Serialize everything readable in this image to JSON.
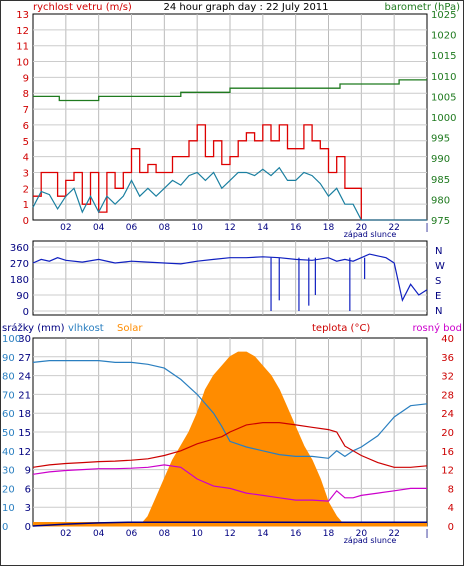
{
  "chart_data": [
    {
      "type": "line",
      "title": "24 hour graph day : 22 July 2011",
      "left_axis_label": "rychlost vetru (m/s)",
      "right_axis_label": "barometr (hPa)",
      "left_ticks": [
        "0",
        "1",
        "2",
        "3",
        "4",
        "5",
        "6",
        "7",
        "8",
        "9",
        "10",
        "11",
        "12",
        "13"
      ],
      "right_ticks": [
        "975",
        "980",
        "985",
        "990",
        "995",
        "1000",
        "1005",
        "1010",
        "1015",
        "1020",
        "1025"
      ],
      "x_ticks": [
        "02",
        "04",
        "06",
        "08",
        "10",
        "12",
        "14",
        "16",
        "18",
        "20",
        "22"
      ],
      "sunset_label": "západ slunce",
      "ylim_left": [
        0,
        13
      ],
      "ylim_right": [
        975,
        1025
      ],
      "xlim": [
        0,
        24
      ],
      "colors": {
        "gust": "#dd0000",
        "avg": "#1a7fa0",
        "pressure": "#1f7a1f"
      },
      "series": [
        {
          "key": "pressure",
          "x": [
            0,
            1.5,
            1.6,
            4,
            6,
            9,
            12,
            15,
            18,
            18.7,
            21,
            22,
            22.3,
            24
          ],
          "y": [
            1005,
            1005,
            1004,
            1005,
            1005,
            1006,
            1007,
            1007,
            1007,
            1008,
            1008,
            1008,
            1009,
            1009
          ]
        },
        {
          "key": "gust",
          "x": [
            0,
            0.5,
            1,
            1.5,
            2,
            2.5,
            3,
            3.5,
            4,
            4.5,
            5,
            5.5,
            6,
            6.5,
            7,
            7.5,
            8,
            8.5,
            9,
            9.5,
            10,
            10.5,
            11,
            11.5,
            12,
            12.5,
            13,
            13.5,
            14,
            14.5,
            15,
            15.5,
            16,
            16.5,
            17,
            17.5,
            18,
            18.5,
            19,
            19.5,
            20,
            20.5,
            21,
            22,
            23,
            24
          ],
          "y": [
            1.5,
            3,
            3,
            1.5,
            2.5,
            3,
            1,
            3,
            0.5,
            3,
            2,
            3,
            4.5,
            3,
            3.5,
            3,
            3,
            4,
            4,
            5,
            6,
            4,
            5,
            3.5,
            4,
            5,
            5.5,
            5,
            6,
            5,
            6,
            4.5,
            4.5,
            6,
            5,
            4.5,
            3,
            4,
            2,
            2,
            0,
            0,
            0,
            0,
            0,
            0
          ]
        },
        {
          "key": "avg",
          "x": [
            0,
            0.5,
            1,
            1.5,
            2,
            2.5,
            3,
            3.5,
            4,
            4.5,
            5,
            5.5,
            6,
            6.5,
            7,
            7.5,
            8,
            8.5,
            9,
            9.5,
            10,
            10.5,
            11,
            11.5,
            12,
            12.5,
            13,
            13.5,
            14,
            14.5,
            15,
            15.5,
            16,
            16.5,
            17,
            17.5,
            18,
            18.5,
            19,
            19.5,
            20,
            20.5,
            21,
            22,
            23,
            24
          ],
          "y": [
            0.8,
            1.8,
            1.6,
            0.7,
            1.5,
            2,
            0.5,
            1.5,
            0.5,
            1.5,
            1,
            1.5,
            2.5,
            1.5,
            2,
            1.5,
            2,
            2.5,
            2.2,
            2.8,
            3,
            2.5,
            3,
            2,
            2.5,
            3,
            3,
            2.8,
            3.2,
            2.8,
            3.3,
            2.5,
            2.5,
            3,
            2.8,
            2.3,
            1.5,
            2,
            1,
            1,
            0,
            0,
            0,
            0,
            0,
            0
          ]
        }
      ]
    },
    {
      "type": "line",
      "left_ticks": [
        "0",
        "90",
        "180",
        "270",
        "360"
      ],
      "right_ticks": [
        "N",
        "W",
        "S",
        "E",
        "N"
      ],
      "ylim": [
        0,
        360
      ],
      "xlim": [
        0,
        24
      ],
      "colors": {
        "direction": "#1020c0"
      },
      "series": [
        {
          "key": "direction",
          "x": [
            0,
            0.5,
            1,
            1.5,
            2,
            3,
            4,
            5,
            6,
            7,
            8,
            9,
            10,
            11,
            12,
            13,
            14,
            15,
            16,
            17,
            18,
            18.5,
            19,
            19.5,
            20,
            20.5,
            21,
            21.5,
            22,
            22.5,
            23,
            23.5,
            24
          ],
          "y": [
            270,
            290,
            280,
            300,
            285,
            275,
            290,
            270,
            280,
            275,
            270,
            265,
            280,
            290,
            300,
            300,
            305,
            300,
            290,
            285,
            300,
            280,
            290,
            280,
            300,
            320,
            310,
            300,
            270,
            60,
            150,
            90,
            120
          ]
        }
      ]
    },
    {
      "type": "line",
      "labels": {
        "rain": "srážky (mm)",
        "humidity": "vlhkost",
        "solar": "Solar",
        "temperature": "teplota (°C)",
        "dewpoint": "rosný bod"
      },
      "rain_ticks": [
        "0",
        "3",
        "6",
        "9",
        "12",
        "15",
        "18",
        "21",
        "24",
        "27",
        "30"
      ],
      "humidity_ticks": [
        "0",
        "10",
        "20",
        "30",
        "40",
        "50",
        "60",
        "70",
        "80",
        "90",
        "100"
      ],
      "temperature_ticks": [
        "0",
        "4",
        "8",
        "12",
        "16",
        "20",
        "24",
        "28",
        "32",
        "36",
        "40"
      ],
      "x_ticks": [
        "02",
        "04",
        "06",
        "08",
        "10",
        "12",
        "14",
        "16",
        "18",
        "20",
        "22"
      ],
      "sunset_label": "západ slunce",
      "xlim": [
        0,
        24
      ],
      "colors": {
        "humidity": "#2a7fc0",
        "solar": "#ff8c00",
        "temperature": "#cc0000",
        "dewpoint": "#cc00cc",
        "rain": "#000080"
      },
      "series": [
        {
          "key": "solar",
          "x": [
            0,
            6.5,
            7,
            7.5,
            8,
            8.5,
            9,
            9.5,
            10,
            10.5,
            11,
            11.5,
            12,
            12.5,
            13,
            13.5,
            14,
            14.5,
            15,
            15.5,
            16,
            16.5,
            17,
            17.5,
            18,
            18.5,
            19,
            24
          ],
          "y": [
            0,
            0,
            2,
            6,
            10,
            14,
            17,
            20,
            24,
            29,
            32,
            34,
            36,
            37,
            37,
            36,
            34,
            32,
            29,
            25,
            21,
            17,
            14,
            10,
            5,
            2,
            0,
            0
          ]
        },
        {
          "key": "humidity",
          "x": [
            0,
            1,
            2,
            3,
            4,
            5,
            6,
            7,
            8,
            9,
            10,
            11,
            11.5,
            12,
            13,
            14,
            15,
            16,
            17,
            18,
            18.5,
            19,
            19.5,
            20,
            21,
            22,
            23,
            24
          ],
          "y": [
            87,
            88,
            88,
            88,
            88,
            87,
            87,
            86,
            84,
            78,
            70,
            60,
            53,
            45,
            42,
            40,
            38,
            37,
            37,
            36,
            40,
            37,
            40,
            42,
            48,
            58,
            64,
            65
          ]
        },
        {
          "key": "temperature",
          "x": [
            0,
            1,
            2,
            3,
            4,
            5,
            6,
            7,
            8,
            9,
            10,
            11,
            11.5,
            12,
            13,
            14,
            15,
            16,
            17,
            18,
            18.5,
            19,
            20,
            21,
            22,
            23,
            24
          ],
          "y": [
            12.5,
            13,
            13.3,
            13.5,
            13.7,
            13.8,
            14,
            14.3,
            15,
            16,
            17.5,
            18.5,
            19,
            20,
            21.5,
            22,
            22,
            21.5,
            21,
            20.5,
            20,
            17,
            15,
            13.5,
            12.5,
            12.5,
            12.8
          ]
        },
        {
          "key": "dewpoint",
          "x": [
            0,
            1,
            2,
            3,
            4,
            5,
            6,
            7,
            8,
            9,
            10,
            11,
            12,
            13,
            14,
            15,
            16,
            17,
            18,
            18.5,
            19,
            19.5,
            20,
            21,
            22,
            23,
            24
          ],
          "y": [
            11,
            11.5,
            11.8,
            12,
            12.2,
            12.2,
            12.3,
            12.5,
            13,
            12.5,
            10,
            8.5,
            8,
            7,
            6.5,
            6,
            5.5,
            5.5,
            5.3,
            7.5,
            6,
            6,
            6.5,
            7,
            7.5,
            8,
            8
          ]
        },
        {
          "key": "rain",
          "x": [
            0,
            2,
            4,
            6,
            24
          ],
          "y": [
            0,
            0.3,
            0.5,
            0.6,
            0.6
          ]
        }
      ]
    }
  ]
}
